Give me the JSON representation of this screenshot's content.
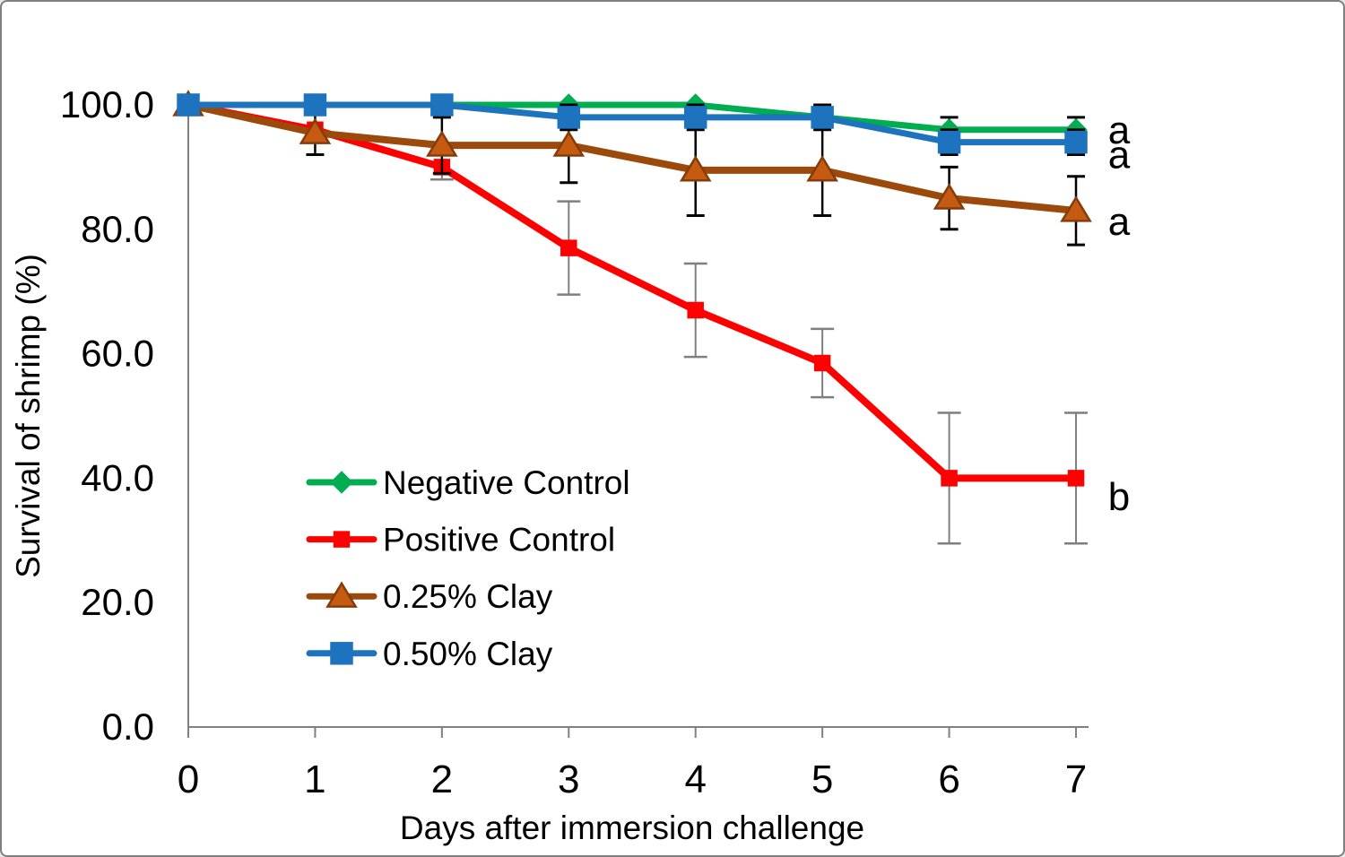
{
  "frame": {
    "background": "#ffffff",
    "border_color": "#7f7f7f",
    "axis_color": "#808080",
    "text_color": "#000000"
  },
  "chart_data": {
    "type": "line",
    "title": "",
    "xlabel": "Days after immersion challenge",
    "ylabel": "Survival of shrimp (%)",
    "x": [
      0,
      1,
      2,
      3,
      4,
      5,
      6,
      7
    ],
    "xtick_labels": [
      "0",
      "1",
      "2",
      "3",
      "4",
      "5",
      "6",
      "7"
    ],
    "ytick_values": [
      0,
      20,
      40,
      60,
      80,
      100
    ],
    "ytick_labels": [
      "0.0",
      "20.0",
      "40.0",
      "60.0",
      "80.0",
      "100.0"
    ],
    "xlim": [
      0,
      7
    ],
    "ylim": [
      0,
      100
    ],
    "grid": false,
    "legend_position": "inside-lower-left",
    "series": [
      {
        "name": "Negative Control",
        "color": "#00AD50",
        "line_width": 7,
        "marker": "diamond",
        "marker_fill": "#00AD50",
        "marker_stroke": "#00AD50",
        "marker_size": 10,
        "values": [
          100,
          100,
          100,
          100,
          100,
          98,
          96,
          96
        ],
        "errors": [
          0,
          0,
          0,
          0,
          0,
          0,
          2,
          2
        ],
        "error_color": "#000000",
        "sig_letter": "a"
      },
      {
        "name": "Positive Control",
        "color": "#FE0000",
        "line_width": 8,
        "marker": "square",
        "marker_fill": "#FE0000",
        "marker_stroke": "#FE0000",
        "marker_size": 8.5,
        "values": [
          100,
          96,
          90,
          77,
          67,
          58.5,
          40,
          40
        ],
        "errors": [
          0,
          0,
          2,
          7.5,
          7.5,
          5.5,
          10.5,
          10.5
        ],
        "error_color": "#7F7F7F",
        "sig_letter": "b"
      },
      {
        "name": "0.25% Clay",
        "color": "#9B4A0B",
        "line_width": 8,
        "marker": "triangle",
        "marker_fill": "#C55A11",
        "marker_stroke": "#843C0C",
        "marker_size": 12,
        "values": [
          100,
          95.5,
          93.5,
          93.5,
          89.5,
          89.5,
          85,
          83
        ],
        "errors": [
          0,
          3.5,
          4.5,
          6,
          7.3,
          7.3,
          5,
          5.5
        ],
        "error_color": "#000000",
        "sig_letter": "a"
      },
      {
        "name": "0.50% Clay",
        "color": "#1E73BE",
        "line_width": 7,
        "marker": "square",
        "marker_fill": "#1E73BE",
        "marker_stroke": "#1E73BE",
        "marker_size": 12,
        "values": [
          100,
          100,
          100,
          98,
          98,
          98,
          94,
          94
        ],
        "errors": [
          0,
          0,
          0,
          2,
          2,
          2,
          2,
          2
        ],
        "error_color": "#000000",
        "sig_letter": "a"
      }
    ],
    "sig_letters": [
      {
        "label": "a",
        "series": "Negative Control",
        "at_x": 7,
        "at_y": 96.0
      },
      {
        "label": "a",
        "series": "0.50% Clay",
        "at_x": 7,
        "at_y": 92.0
      },
      {
        "label": "a",
        "series": "0.25% Clay",
        "at_x": 7,
        "at_y": 81.3
      },
      {
        "label": "b",
        "series": "Positive Control",
        "at_x": 7,
        "at_y": 37.0
      }
    ],
    "legend": {
      "items": [
        "Negative Control",
        "Positive Control",
        "0.25% Clay",
        "0.50% Clay"
      ]
    }
  }
}
